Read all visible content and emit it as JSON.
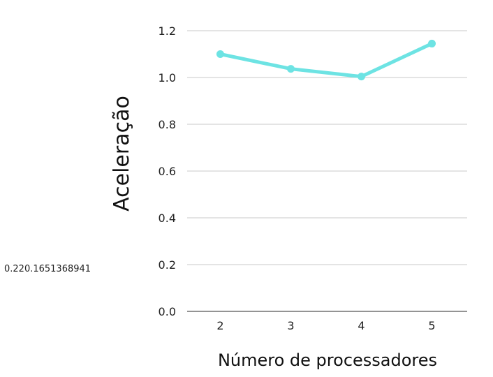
{
  "chart_data": {
    "type": "line",
    "x": [
      2,
      3,
      4,
      5
    ],
    "categories": [
      "2",
      "3",
      "4",
      "5"
    ],
    "series": [
      {
        "values": [
          1.1,
          1.037,
          1.004,
          1.145
        ]
      }
    ],
    "xlabel": "Número de processadores",
    "ylabel": "Aceleração",
    "ylim": [
      0,
      1.2
    ],
    "yticks": [
      "0.0",
      "0.2",
      "0.4",
      "0.6",
      "0.8",
      "1.0",
      "1.2"
    ],
    "grid": true,
    "colors": {
      "line": "#6de3e3",
      "grid": "#c8c8c8",
      "axis": "#555555"
    }
  },
  "annotation": "0.220.1651368941"
}
